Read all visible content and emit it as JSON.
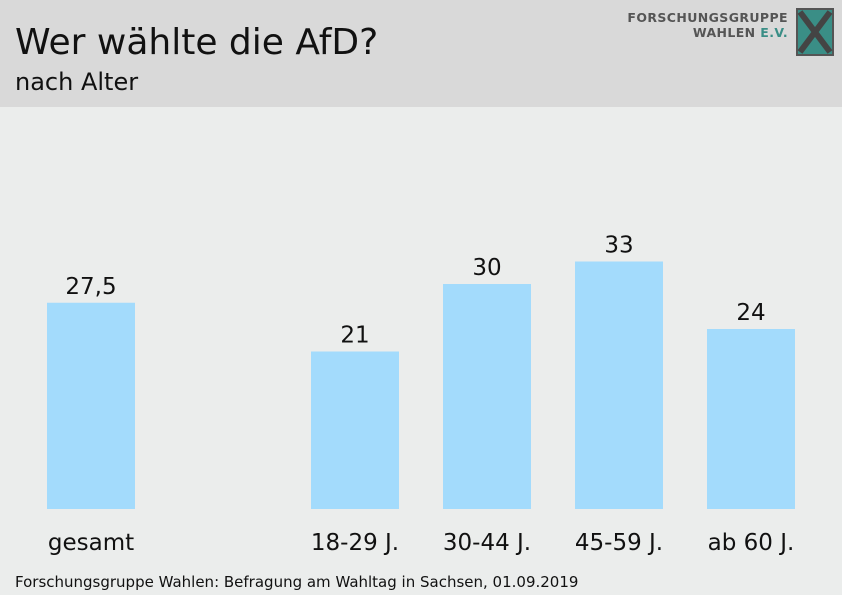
{
  "header": {
    "title": "Wer wählte die AfD?",
    "subtitle": "nach Alter",
    "logo_line1": "FORSCHUNGSGRUPPE",
    "logo_line2_main": "WAHLEN ",
    "logo_line2_accent": "E.V."
  },
  "source": "Forschungsgruppe Wahlen: Befragung am Wahltag in Sachsen, 01.09.2019",
  "colors": {
    "bar": "#a3dbfc",
    "header_bg": "#d9d9d9",
    "plot_bg": "#ebedec",
    "logo_accent": "#3a8e86"
  },
  "chart_data": {
    "type": "bar",
    "categories": [
      "gesamt",
      "18-29 J.",
      "30-44 J.",
      "45-59 J.",
      "ab 60 J."
    ],
    "values": [
      27.5,
      21,
      30,
      33,
      24
    ],
    "value_labels": [
      "27,5",
      "21",
      "30",
      "33",
      "24"
    ],
    "title": "Wer wählte die AfD?",
    "subtitle": "nach Alter",
    "ylim": [
      0,
      40
    ],
    "grid": false,
    "legend": "none"
  }
}
